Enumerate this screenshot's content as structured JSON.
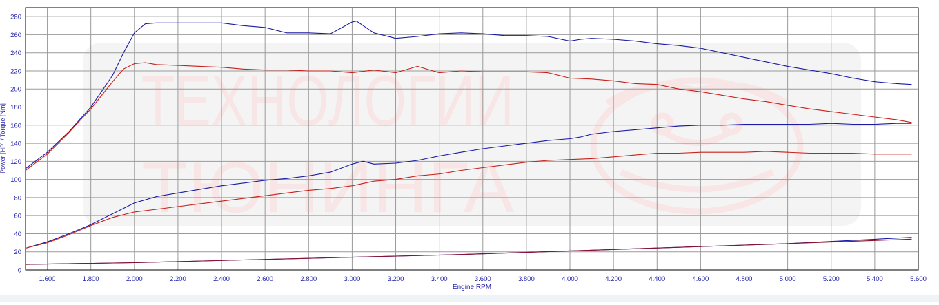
{
  "chart_data": {
    "type": "line",
    "title": "",
    "xlabel": "Engine RPM",
    "ylabel": "Power [HP] / Torque [Nm]",
    "xlim": [
      1500,
      5600
    ],
    "ylim": [
      0,
      290
    ],
    "grid": true,
    "legend": "none",
    "x_ticks": [
      1600,
      1800,
      2000,
      2200,
      2400,
      2600,
      2800,
      3000,
      3200,
      3400,
      3600,
      3800,
      4000,
      4200,
      4400,
      4600,
      4800,
      5000,
      5200,
      5400,
      5600
    ],
    "x_tick_labels": [
      "1.600",
      "1.800",
      "2.000",
      "2.200",
      "2.400",
      "2.600",
      "2.800",
      "3.000",
      "3.200",
      "3.400",
      "3.600",
      "3.800",
      "4.000",
      "4.200",
      "4.400",
      "4.600",
      "4.800",
      "5.000",
      "5.200",
      "5.400",
      "5.600"
    ],
    "y_ticks": [
      0,
      20,
      40,
      60,
      80,
      100,
      120,
      140,
      160,
      180,
      200,
      220,
      240,
      260,
      280
    ],
    "y_tick_labels": [
      "0",
      "20",
      "40",
      "60",
      "80",
      "100",
      "120",
      "140",
      "160",
      "180",
      "200",
      "220",
      "240",
      "260",
      "280"
    ],
    "series": [
      {
        "color": "#1a1aa6",
        "x": [
          1500,
          1600,
          1700,
          1800,
          1900,
          1950,
          2000,
          2050,
          2100,
          2200,
          2300,
          2400,
          2500,
          2600,
          2700,
          2800,
          2900,
          3000,
          3020,
          3100,
          3200,
          3300,
          3400,
          3500,
          3600,
          3700,
          3800,
          3900,
          4000,
          4050,
          4100,
          4200,
          4300,
          4400,
          4500,
          4600,
          4700,
          4800,
          4900,
          5000,
          5100,
          5200,
          5300,
          5400,
          5500,
          5570
        ],
        "y": [
          112,
          130,
          153,
          180,
          215,
          240,
          262,
          272,
          273,
          273,
          273,
          273,
          270,
          268,
          262,
          262,
          261,
          274,
          275,
          262,
          256,
          258,
          261,
          262,
          261,
          259,
          259,
          258,
          253,
          255,
          256,
          255,
          253,
          250,
          248,
          245,
          240,
          235,
          230,
          225,
          221,
          217,
          212,
          208,
          206,
          205
        ]
      },
      {
        "color": "#c8201a",
        "x": [
          1500,
          1600,
          1700,
          1800,
          1900,
          1950,
          2000,
          2050,
          2100,
          2200,
          2300,
          2400,
          2500,
          2600,
          2700,
          2800,
          2900,
          3000,
          3100,
          3200,
          3300,
          3400,
          3500,
          3600,
          3700,
          3800,
          3900,
          4000,
          4100,
          4200,
          4300,
          4400,
          4500,
          4600,
          4700,
          4800,
          4900,
          5000,
          5100,
          5200,
          5300,
          5400,
          5500,
          5570
        ],
        "y": [
          110,
          128,
          152,
          178,
          208,
          222,
          228,
          229,
          227,
          226,
          225,
          224,
          222,
          221,
          221,
          220,
          220,
          218,
          221,
          218,
          225,
          218,
          220,
          219,
          219,
          219,
          218,
          212,
          211,
          209,
          206,
          205,
          200,
          197,
          193,
          189,
          186,
          182,
          178,
          175,
          172,
          169,
          166,
          163
        ]
      },
      {
        "color": "#1a1aa6",
        "x": [
          1500,
          1600,
          1700,
          1800,
          1900,
          2000,
          2100,
          2200,
          2300,
          2400,
          2500,
          2600,
          2700,
          2800,
          2900,
          3000,
          3050,
          3100,
          3200,
          3300,
          3400,
          3500,
          3600,
          3700,
          3800,
          3900,
          4000,
          4050,
          4100,
          4200,
          4300,
          4400,
          4500,
          4600,
          4700,
          4800,
          4900,
          5000,
          5100,
          5200,
          5300,
          5400,
          5500,
          5570
        ],
        "y": [
          24,
          31,
          40,
          50,
          62,
          74,
          81,
          85,
          89,
          93,
          96,
          99,
          101,
          104,
          108,
          117,
          120,
          117,
          118,
          121,
          126,
          130,
          134,
          137,
          140,
          143,
          145,
          147,
          150,
          153,
          155,
          157,
          159,
          160,
          160,
          161,
          161,
          161,
          161,
          162,
          161,
          161,
          162,
          162
        ]
      },
      {
        "color": "#c8201a",
        "x": [
          1500,
          1600,
          1700,
          1800,
          1900,
          2000,
          2100,
          2200,
          2300,
          2400,
          2500,
          2600,
          2700,
          2800,
          2900,
          3000,
          3100,
          3200,
          3300,
          3400,
          3500,
          3600,
          3700,
          3800,
          3900,
          4000,
          4100,
          4200,
          4300,
          4400,
          4500,
          4600,
          4700,
          4800,
          4900,
          5000,
          5100,
          5200,
          5300,
          5400,
          5500,
          5570
        ],
        "y": [
          24,
          30,
          39,
          49,
          58,
          64,
          67,
          70,
          73,
          76,
          79,
          82,
          85,
          88,
          90,
          93,
          98,
          100,
          104,
          106,
          110,
          113,
          116,
          119,
          121,
          122,
          123,
          125,
          127,
          129,
          129,
          130,
          130,
          130,
          131,
          130,
          129,
          129,
          129,
          128,
          128,
          128
        ]
      },
      {
        "color": "#1a1aa6",
        "x": [
          1500,
          2000,
          2500,
          3000,
          3500,
          4000,
          4500,
          5000,
          5570
        ],
        "y": [
          6,
          8,
          11,
          14,
          17,
          21,
          25,
          29,
          36
        ]
      },
      {
        "color": "#8a1030",
        "x": [
          1500,
          2000,
          2500,
          3000,
          3500,
          4000,
          4500,
          5000,
          5570
        ],
        "y": [
          6,
          8,
          11,
          14,
          17,
          21,
          25,
          29,
          34
        ]
      }
    ]
  },
  "watermark": {
    "line1": "ТЕХНОЛОГИИ",
    "line2": "ТЮНИНГА",
    "color": "#d05050"
  }
}
